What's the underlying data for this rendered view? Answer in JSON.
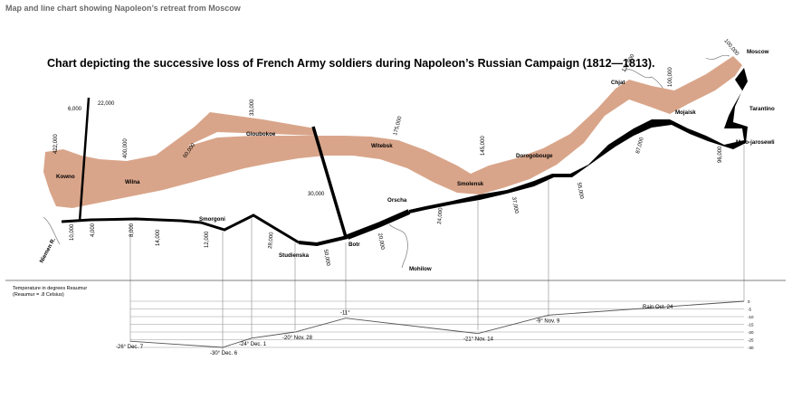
{
  "caption": "Map and line chart showing Napoleon’s retreat from Moscow",
  "chart_data": {
    "type": "flow-map",
    "title": "Chart depicting the successive loss of French Army soldiers during Napoleon’s Russian Campaign (1812—1813).",
    "colors": {
      "advance": "#d9a58a",
      "retreat": "#000000"
    },
    "cities": [
      "Kowno",
      "Wilna",
      "Smorgoni",
      "Gloubokoe",
      "Witebsk",
      "Orscha",
      "Botr",
      "Studienska",
      "Smolensk",
      "Dorogobouge",
      "Chjat",
      "Mojaisk",
      "Moscow",
      "Tarantino",
      "Malo-jarosewli",
      "Mohilow",
      "Niemen R."
    ],
    "army_labels": {
      "advance": [
        "422,000",
        "400,000",
        "60,000",
        "33,000",
        "175,000",
        "145,000",
        "127,000",
        "100,000",
        "100,000"
      ],
      "retreat": [
        "96,000",
        "87,000",
        "55,000",
        "37,000",
        "24,000",
        "20,000",
        "50,000",
        "28,000",
        "14,000",
        "8,000",
        "12,000",
        "4,000",
        "10,000"
      ],
      "side": [
        "6,000",
        "22,000",
        "30,000"
      ]
    },
    "temperature": {
      "label": "Temperature in degrees Reaumur",
      "sublabel": "(Reaumur = .8 Celsius)",
      "axis_ticks": [
        "0",
        "-5",
        "-10",
        "-15",
        "-20",
        "-25",
        "-30"
      ],
      "ylim": [
        -30,
        0
      ],
      "points": [
        {
          "label": "Rain Oct. 24",
          "value": 0
        },
        {
          "label": "-9° Nov. 9",
          "value": -9
        },
        {
          "label": "-21° Nov. 14",
          "value": -21
        },
        {
          "label": "-11°",
          "value": -11
        },
        {
          "label": "-20° Nov. 28",
          "value": -20
        },
        {
          "label": "-24° Dec. 1",
          "value": -24
        },
        {
          "label": "-30° Dec. 6",
          "value": -30
        },
        {
          "label": "-26° Dec. 7",
          "value": -26
        }
      ]
    }
  }
}
